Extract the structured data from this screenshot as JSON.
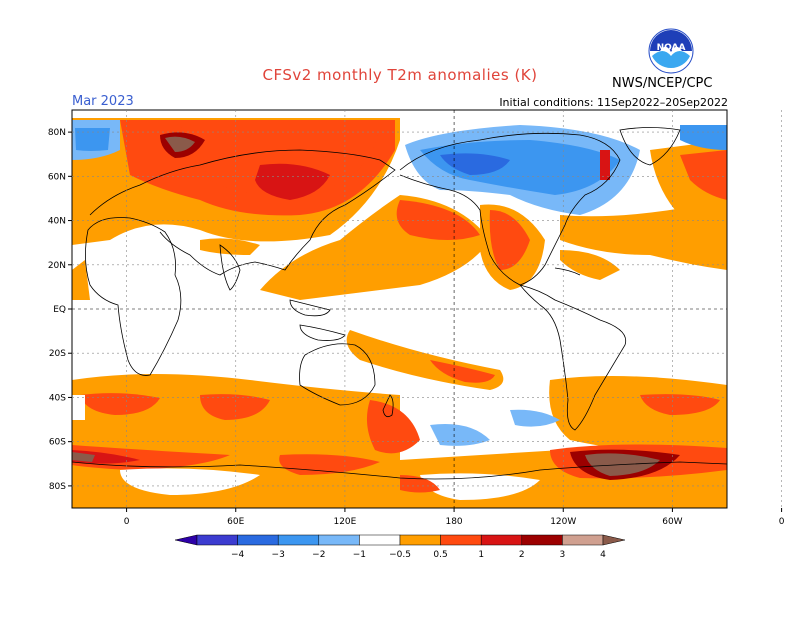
{
  "header": {
    "title": "CFSv2 monthly T2m anomalies (K)",
    "month": "Mar 2023",
    "agency": "NWS/NCEP/CPC",
    "initial_conditions": "Initial conditions: 11Sep2022–20Sep2022",
    "logo_text": "NOAA"
  },
  "map": {
    "lat_labels": [
      "80N",
      "60N",
      "40N",
      "20N",
      "EQ",
      "20S",
      "40S",
      "60S",
      "80S"
    ],
    "lon_labels": [
      "0",
      "60E",
      "120E",
      "180",
      "120W",
      "60W",
      "0"
    ]
  },
  "legend": {
    "labels": [
      "−4",
      "−3",
      "−2",
      "−1",
      "−0.5",
      "0.5",
      "1",
      "2",
      "3",
      "4"
    ],
    "colors": [
      "#2d00a8",
      "#3c3cd0",
      "#2a6ae0",
      "#3c96f0",
      "#78b8f8",
      "#ffffff",
      "#ff9e00",
      "#ff4a10",
      "#d81414",
      "#9c0000",
      "#d0a090",
      "#8a5a4a"
    ]
  },
  "colors": {
    "title": "#e0443a",
    "month": "#3a5fd0"
  }
}
